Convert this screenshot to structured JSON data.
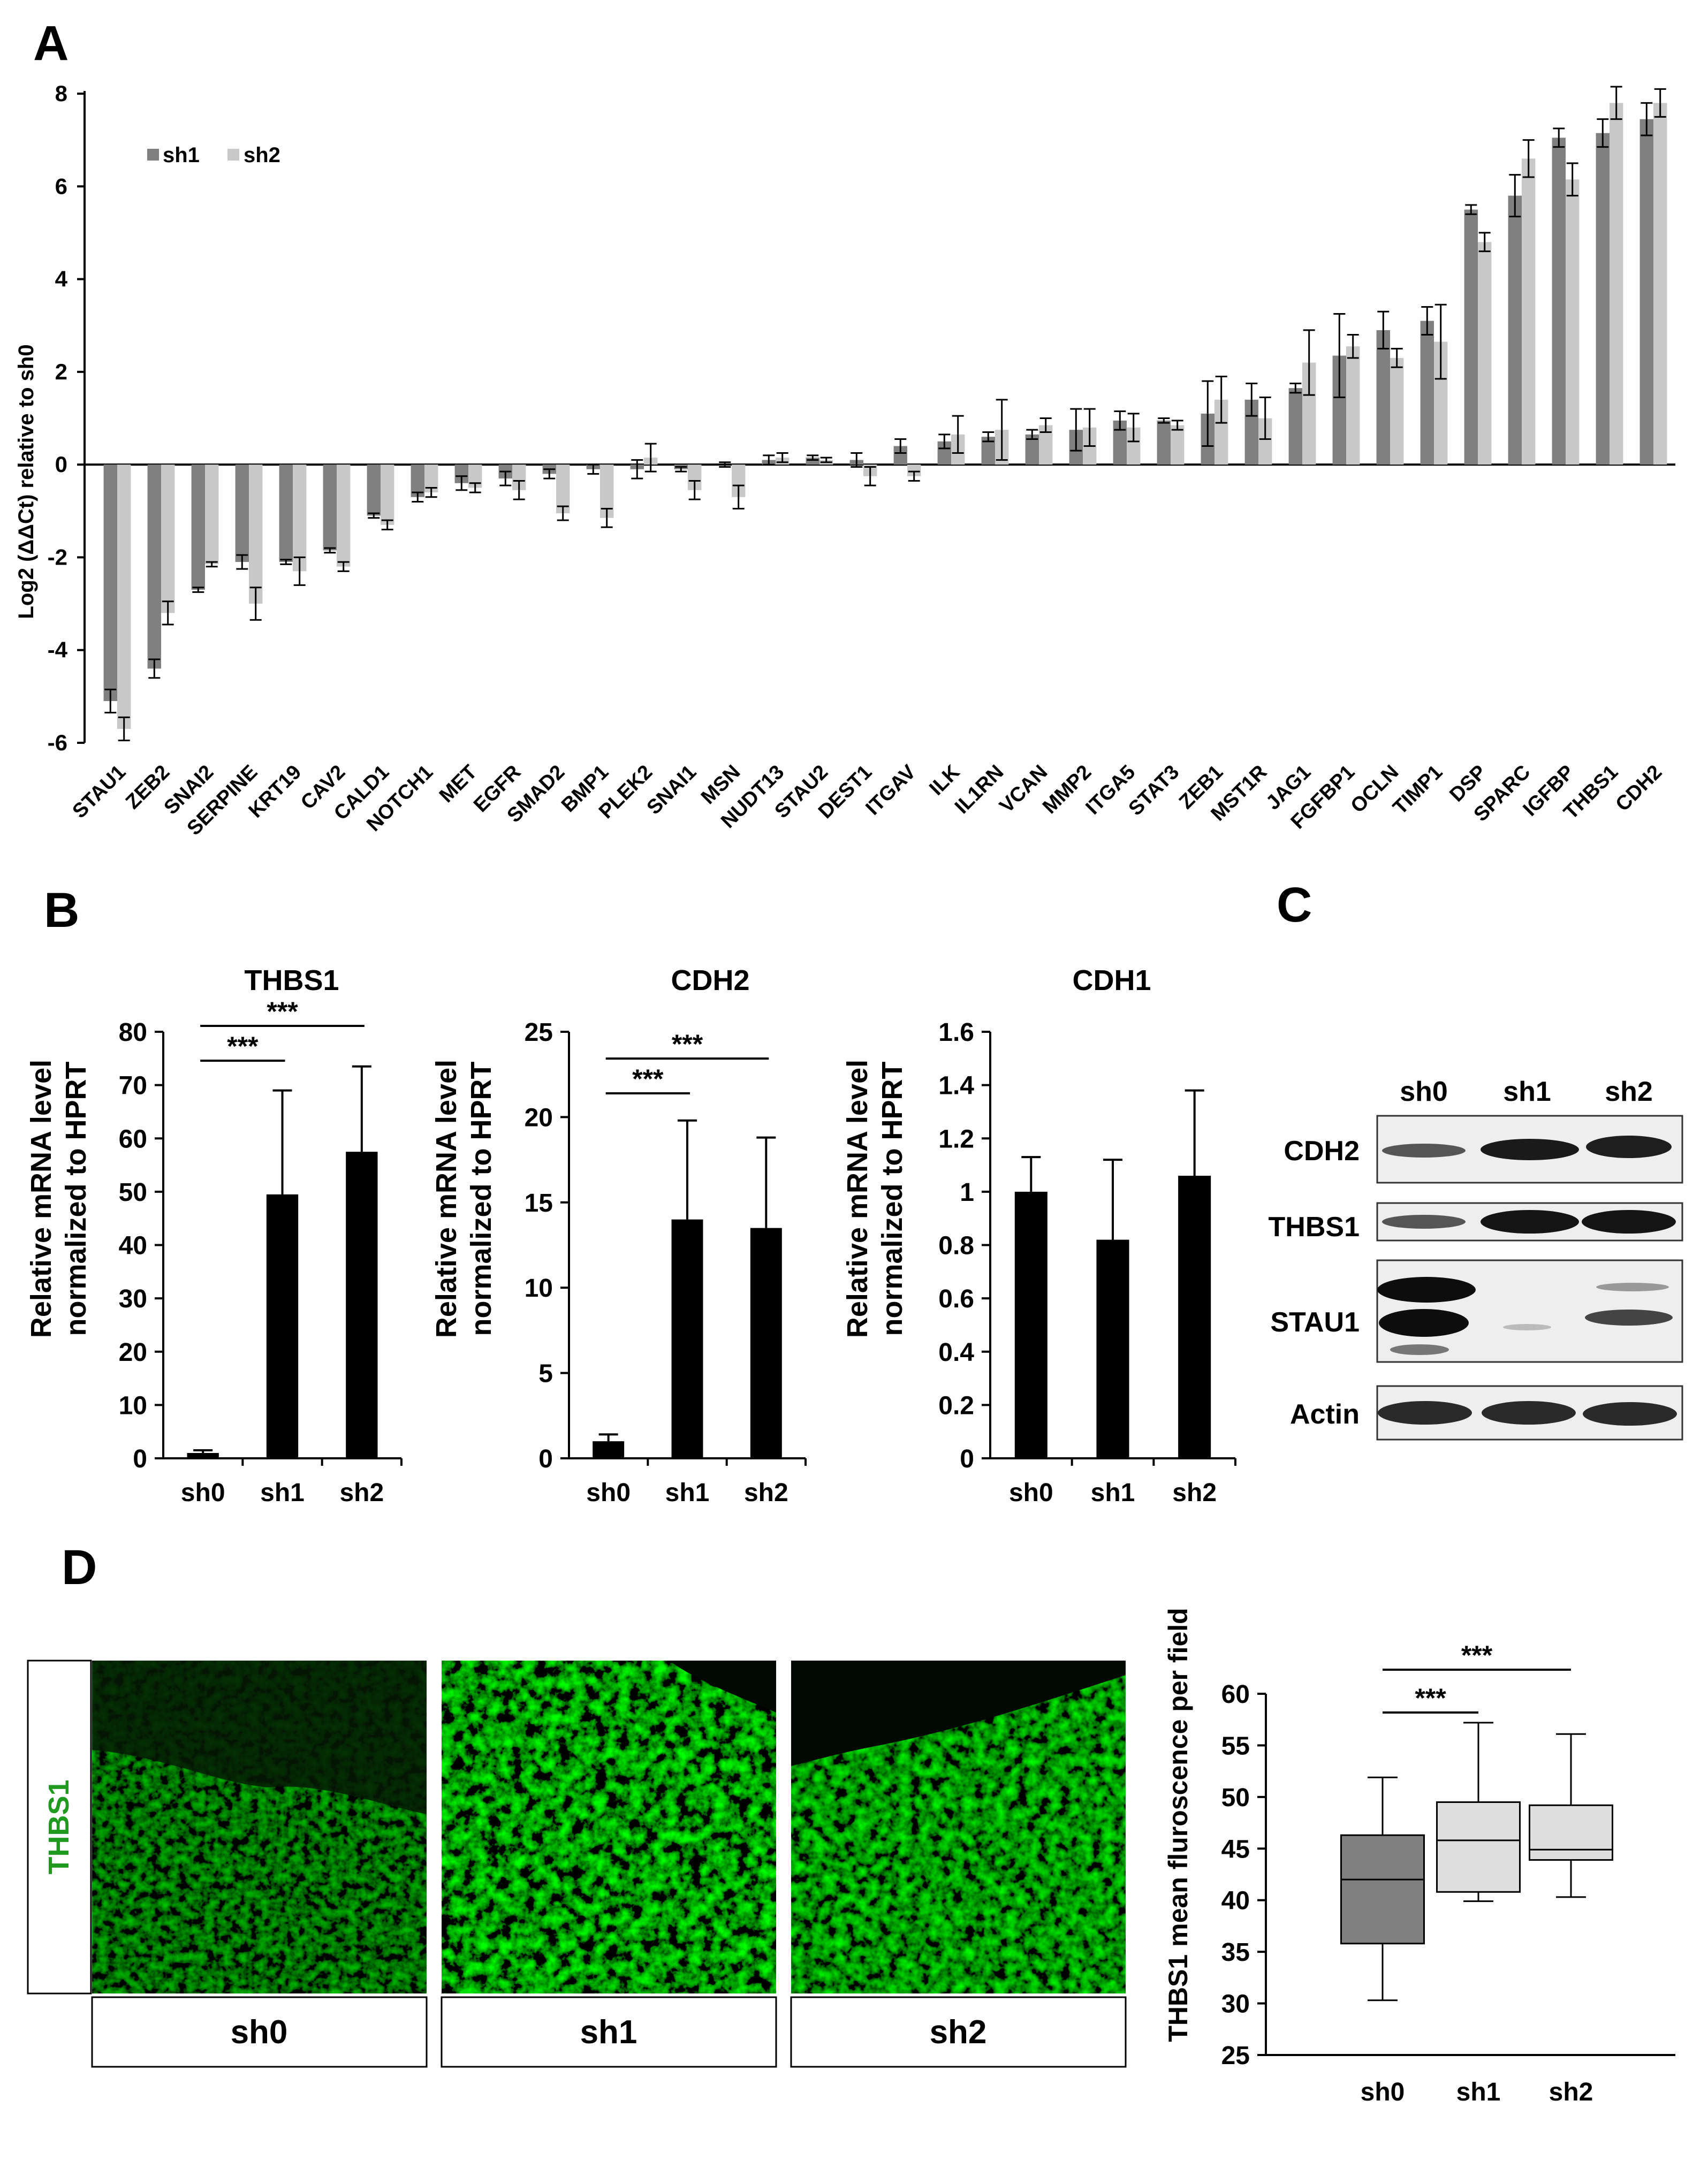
{
  "panels": {
    "a": "A",
    "b": "B",
    "c": "C",
    "d": "D"
  },
  "colors": {
    "sh1": "#808080",
    "sh2": "#c8c8c8",
    "black": "#000000",
    "green": "#1f9a1f"
  },
  "chart_data": [
    {
      "id": "panel-a",
      "type": "bar",
      "ylabel": "Log2 (ΔΔCt) relative to sh0",
      "ylim": [
        -6,
        8
      ],
      "yticks": [
        -6,
        -4,
        -2,
        0,
        2,
        4,
        6,
        8
      ],
      "legend": "top-left",
      "categories": [
        "STAU1",
        "ZEB2",
        "SNAI2",
        "SERPINE",
        "KRT19",
        "CAV2",
        "CALD1",
        "NOTCH1",
        "MET",
        "EGFR",
        "SMAD2",
        "BMP1",
        "PLEK2",
        "SNAI1",
        "MSN",
        "NUDT13",
        "STAU2",
        "DEST1",
        "ITGAV",
        "ILK",
        "IL1RN",
        "VCAN",
        "MMP2",
        "ITGA5",
        "STAT3",
        "ZEB1",
        "MST1R",
        "JAG1",
        "FGFBP1",
        "OCLN",
        "TIMP1",
        "DSP",
        "SPARC",
        "IGFBP",
        "THBS1",
        "CDH2"
      ],
      "series": [
        {
          "name": "sh1",
          "values": [
            -5.1,
            -4.4,
            -2.7,
            -2.1,
            -2.1,
            -1.85,
            -1.1,
            -0.7,
            -0.4,
            -0.3,
            -0.2,
            -0.1,
            -0.1,
            -0.1,
            0.0,
            0.1,
            0.15,
            0.1,
            0.4,
            0.5,
            0.6,
            0.65,
            0.75,
            0.95,
            0.95,
            1.1,
            1.4,
            1.65,
            2.35,
            2.9,
            3.1,
            5.5,
            5.8,
            7.05,
            7.15,
            7.45
          ],
          "errors": [
            0.25,
            0.2,
            0.05,
            0.15,
            0.05,
            0.05,
            0.05,
            0.1,
            0.15,
            0.15,
            0.1,
            0.1,
            0.2,
            0.05,
            0.05,
            0.1,
            0.05,
            0.15,
            0.15,
            0.15,
            0.1,
            0.1,
            0.45,
            0.2,
            0.05,
            0.7,
            0.35,
            0.1,
            0.9,
            0.4,
            0.3,
            0.1,
            0.45,
            0.2,
            0.3,
            0.35
          ]
        },
        {
          "name": "sh2",
          "values": [
            -5.7,
            -3.2,
            -2.15,
            -3.0,
            -2.3,
            -2.2,
            -1.3,
            -0.6,
            -0.5,
            -0.55,
            -1.05,
            -1.15,
            0.15,
            -0.55,
            -0.7,
            0.15,
            0.1,
            -0.25,
            -0.25,
            0.65,
            0.75,
            0.85,
            0.8,
            0.8,
            0.85,
            1.4,
            1.0,
            2.2,
            2.55,
            2.3,
            2.65,
            4.8,
            6.6,
            6.15,
            7.8,
            7.8
          ],
          "errors": [
            0.25,
            0.25,
            0.05,
            0.35,
            0.3,
            0.1,
            0.1,
            0.1,
            0.1,
            0.2,
            0.15,
            0.2,
            0.3,
            0.2,
            0.25,
            0.1,
            0.05,
            0.2,
            0.1,
            0.4,
            0.65,
            0.15,
            0.4,
            0.3,
            0.1,
            0.5,
            0.45,
            0.7,
            0.25,
            0.2,
            0.8,
            0.2,
            0.4,
            0.35,
            0.35,
            0.3
          ]
        }
      ]
    },
    {
      "id": "panel-b-thbs1",
      "type": "bar",
      "title": "THBS1",
      "ylabel": "Relative mRNA level normalized to HPRT",
      "ylabel_lines": [
        "Relative mRNA level",
        "normalized to HPRT"
      ],
      "categories": [
        "sh0",
        "sh1",
        "sh2"
      ],
      "values": [
        1,
        49.5,
        57.5
      ],
      "errors": [
        0.5,
        19.5,
        16
      ],
      "ylim": [
        0,
        80
      ],
      "yticks": [
        0,
        10,
        20,
        30,
        40,
        50,
        60,
        70,
        80
      ],
      "significance": [
        {
          "from": 0,
          "to": 1,
          "label": "***"
        },
        {
          "from": 0,
          "to": 2,
          "label": "***"
        }
      ]
    },
    {
      "id": "panel-b-cdh2",
      "type": "bar",
      "title": "CDH2",
      "ylabel": "Relative mRNA level normalized to HPRT",
      "ylabel_lines": [
        "Relative mRNA level",
        "normalized to HPRT"
      ],
      "categories": [
        "sh0",
        "sh1",
        "sh2"
      ],
      "values": [
        1,
        14,
        13.5
      ],
      "errors": [
        0.4,
        5.8,
        5.3
      ],
      "ylim": [
        0,
        25
      ],
      "yticks": [
        0,
        5,
        10,
        15,
        20,
        25
      ],
      "significance": [
        {
          "from": 0,
          "to": 1,
          "label": "***"
        },
        {
          "from": 0,
          "to": 2,
          "label": "***"
        }
      ]
    },
    {
      "id": "panel-b-cdh1",
      "type": "bar",
      "title": "CDH1",
      "ylabel": "Relative mRNA level normalized to HPRT",
      "ylabel_lines": [
        "Relative mRNA level",
        "normalized to HPRT"
      ],
      "categories": [
        "sh0",
        "sh1",
        "sh2"
      ],
      "values": [
        1.0,
        0.82,
        1.06
      ],
      "errors": [
        0.13,
        0.3,
        0.32
      ],
      "ylim": [
        0,
        1.6
      ],
      "yticks": [
        "0",
        "0.2",
        "0.4",
        "0.6",
        "0.8",
        "1",
        "1.2",
        "1.4",
        "1.6"
      ]
    },
    {
      "id": "panel-d-box",
      "type": "box",
      "ylabel": "THBS1 mean fluroscence per field",
      "categories": [
        "sh0",
        "sh1",
        "sh2"
      ],
      "boxes": [
        {
          "min": 30.3,
          "q1": 35.8,
          "median": 42.0,
          "q3": 46.3,
          "max": 51.9
        },
        {
          "min": 39.9,
          "q1": 40.8,
          "median": 45.8,
          "q3": 49.5,
          "max": 57.2
        },
        {
          "min": 40.3,
          "q1": 43.9,
          "median": 44.9,
          "q3": 49.2,
          "max": 56.1
        }
      ],
      "ylim": [
        25,
        60
      ],
      "yticks": [
        25,
        30,
        35,
        40,
        45,
        50,
        55,
        60
      ],
      "significance": [
        {
          "from": 0,
          "to": 1,
          "label": "***"
        },
        {
          "from": 0,
          "to": 2,
          "label": "***"
        }
      ]
    }
  ],
  "western": {
    "lanes": [
      "sh0",
      "sh1",
      "sh2"
    ],
    "rows": [
      "CDH2",
      "THBS1",
      "STAU1",
      "Actin"
    ]
  },
  "microscopy": {
    "stain": "THBS1",
    "images": [
      "sh0",
      "sh1",
      "sh2"
    ]
  }
}
